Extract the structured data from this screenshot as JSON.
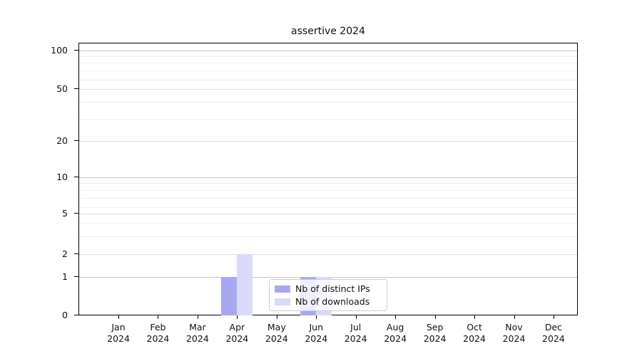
{
  "figure": {
    "background_color": "#ffffff",
    "text_color": "#111111"
  },
  "chart_data": {
    "type": "bar",
    "title": "assertive 2024",
    "categories": [
      "Jan 2024",
      "Feb 2024",
      "Mar 2024",
      "Apr 2024",
      "May 2024",
      "Jun 2024",
      "Jul 2024",
      "Aug 2024",
      "Sep 2024",
      "Oct 2024",
      "Nov 2024",
      "Dec 2024"
    ],
    "x_tick_line1": [
      "Jan",
      "Feb",
      "Mar",
      "Apr",
      "May",
      "Jun",
      "Jul",
      "Aug",
      "Sep",
      "Oct",
      "Nov",
      "Dec"
    ],
    "x_tick_line2": [
      "2024",
      "2024",
      "2024",
      "2024",
      "2024",
      "2024",
      "2024",
      "2024",
      "2024",
      "2024",
      "2024",
      "2024"
    ],
    "series": [
      {
        "name": "Nb of distinct IPs",
        "color": "#a8a8f2",
        "values": [
          0,
          0,
          0,
          1,
          0,
          1,
          0,
          0,
          0,
          0,
          0,
          0
        ]
      },
      {
        "name": "Nb of downloads",
        "color": "#d9d9f9",
        "values": [
          0,
          0,
          0,
          2,
          0,
          1,
          0,
          0,
          0,
          0,
          0,
          0
        ]
      }
    ],
    "xlabel": "",
    "ylabel": "",
    "yscale": "log-like",
    "ylim": [
      0,
      120
    ],
    "ytick_values": [
      0,
      1,
      2,
      5,
      10,
      20,
      50,
      100
    ],
    "ytick_labels": [
      "0",
      "1",
      "2",
      "5",
      "10",
      "20",
      "50",
      "100"
    ],
    "ytick_power10_values": [
      1,
      10,
      100
    ],
    "y_minor_gridline_values": [
      3,
      4,
      6,
      7,
      8,
      9,
      30,
      40,
      60,
      70,
      80,
      90
    ],
    "grid": true,
    "legend": {
      "entries": [
        "Nb of distinct IPs",
        "Nb of downloads"
      ],
      "position": "lower center"
    }
  }
}
